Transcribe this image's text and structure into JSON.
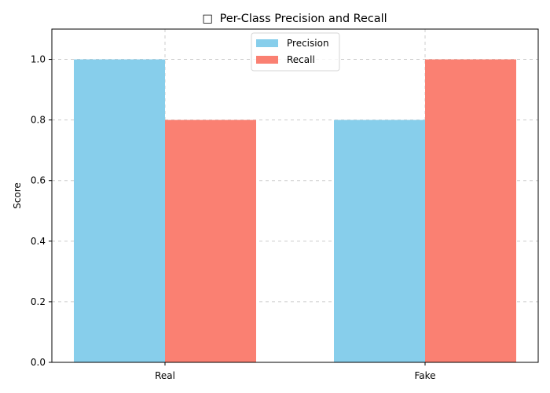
{
  "chart_data": {
    "type": "bar",
    "title": "Per-Class Precision and Recall",
    "title_icon": "missing-glyph-icon",
    "title_icon_text": "□",
    "xlabel": "",
    "ylabel": "Score",
    "categories": [
      "Real",
      "Fake"
    ],
    "series": [
      {
        "name": "Precision",
        "values": [
          1.0,
          0.8
        ],
        "color": "#87CEEB"
      },
      {
        "name": "Recall",
        "values": [
          0.8,
          1.0
        ],
        "color": "#FA8072"
      }
    ],
    "ylim": [
      0,
      1.1
    ],
    "yticks": [
      "0.0",
      "0.2",
      "0.4",
      "0.6",
      "0.8",
      "1.0"
    ],
    "grid": true,
    "legend_placement": "top-center"
  }
}
